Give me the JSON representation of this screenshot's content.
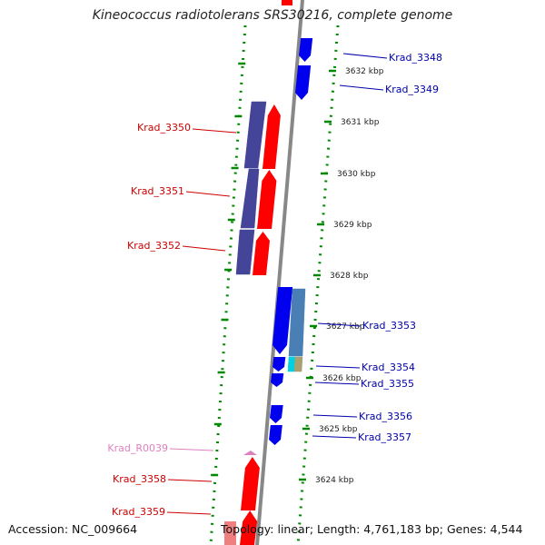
{
  "title": "Kineococcus radiotolerans SRS30216, complete genome",
  "footer": {
    "accession": "Accession: NC_009664",
    "topology": "Topology: linear; Length: 4,761,183 bp; Genes: 4,544"
  },
  "colors": {
    "forward_gene": "#ff0000",
    "reverse_gene": "#0000ee",
    "forward_label": "#cc0000",
    "reverse_label": "#0000aa",
    "rna_label": "#e07fbf",
    "cds_box_purple": "#444499",
    "cds_box_steel": "#4a7fb5",
    "backbone": "#888888",
    "dotted_guide": "#008800"
  },
  "scale_ticks": [
    "3632 kbp",
    "3631 kbp",
    "3630 kbp",
    "3629 kbp",
    "3628 kbp",
    "3627 kbp",
    "3626 kbp",
    "3625 kbp",
    "3624 kbp"
  ],
  "genes": [
    {
      "id": "Krad_3348",
      "strand": "reverse"
    },
    {
      "id": "Krad_3349",
      "strand": "reverse"
    },
    {
      "id": "Krad_3350",
      "strand": "forward"
    },
    {
      "id": "Krad_3351",
      "strand": "forward"
    },
    {
      "id": "Krad_3352",
      "strand": "forward"
    },
    {
      "id": "Krad_3353",
      "strand": "reverse"
    },
    {
      "id": "Krad_3354",
      "strand": "reverse"
    },
    {
      "id": "Krad_3355",
      "strand": "reverse"
    },
    {
      "id": "Krad_3356",
      "strand": "reverse"
    },
    {
      "id": "Krad_3357",
      "strand": "reverse"
    },
    {
      "id": "Krad_R0039",
      "strand": "forward"
    },
    {
      "id": "Krad_3358",
      "strand": "forward"
    },
    {
      "id": "Krad_3359",
      "strand": "forward"
    }
  ]
}
